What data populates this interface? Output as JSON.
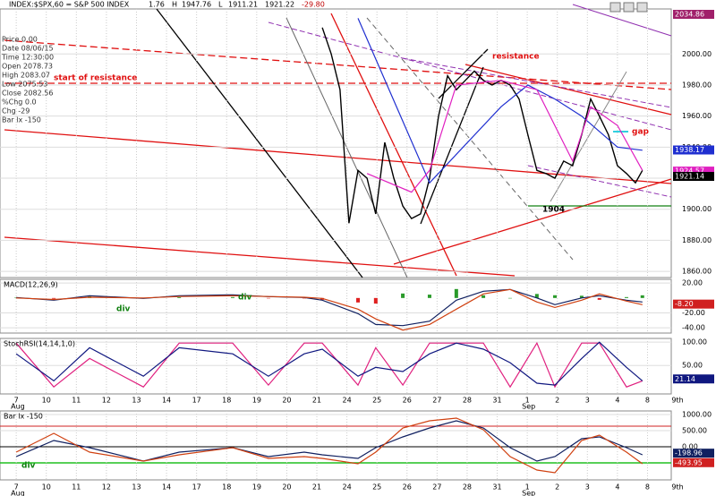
{
  "chart_data": [
    {
      "type": "line",
      "title": "INDEX:$SPX,60 = S&P 500 INDEX",
      "header_values": [
        "1.76",
        "H",
        "1947.76",
        "L",
        "1911.21",
        "1921.22",
        "-29.80"
      ],
      "info_panel": [
        "Price  0.00",
        "Date  08/06/15",
        "Time  12:30:00",
        "Open  2078.73",
        "High  2083.07",
        "Low  2075.53",
        "Close  2082.56",
        "%Chg  0.0",
        "Chg  -29",
        "Bar lx  -150"
      ],
      "annotations": [
        "start of resistance",
        "resistance",
        "gap",
        "1904"
      ],
      "xlim": [
        -0.54,
        21.79
      ],
      "xticks": [
        {
          "value": 0,
          "label": "7"
        },
        {
          "value": 1,
          "label": "10"
        },
        {
          "value": 2,
          "label": "11"
        },
        {
          "value": 3,
          "label": "12"
        },
        {
          "value": 4,
          "label": "13"
        },
        {
          "value": 5,
          "label": "14"
        },
        {
          "value": 6,
          "label": "17"
        },
        {
          "value": 7,
          "label": "18"
        },
        {
          "value": 8,
          "label": "19"
        },
        {
          "value": 9,
          "label": "20"
        },
        {
          "value": 10,
          "label": "21"
        },
        {
          "value": 11,
          "label": "24"
        },
        {
          "value": 12,
          "label": "25"
        },
        {
          "value": 13,
          "label": "26"
        },
        {
          "value": 14,
          "label": "27"
        },
        {
          "value": 15,
          "label": "28"
        },
        {
          "value": 16,
          "label": "31"
        },
        {
          "value": 17,
          "label": "1"
        },
        {
          "value": 18,
          "label": "2"
        },
        {
          "value": 19,
          "label": "3"
        },
        {
          "value": 20,
          "label": "4"
        },
        {
          "value": 21,
          "label": "8"
        },
        {
          "value": 22,
          "label": "9th"
        }
      ],
      "month_labels": [
        "Aug",
        "Sep"
      ],
      "ylim": [
        1856,
        2029
      ],
      "yticks": [
        {
          "value": 1860,
          "label": "1860.00"
        },
        {
          "value": 1880,
          "label": "1880.00"
        },
        {
          "value": 1900,
          "label": "1900.00"
        },
        {
          "value": 1920,
          "label": "1920.00"
        },
        {
          "value": 1940,
          "label": "1940.00"
        },
        {
          "value": 1960,
          "label": "1960.00"
        },
        {
          "value": 1980,
          "label": "1980.00"
        },
        {
          "value": 2000,
          "label": "2000.00"
        }
      ],
      "last_labels": [
        {
          "value": 2034.86,
          "label": "2034.86",
          "color": "#a0206a"
        },
        {
          "value": 1938.17,
          "label": "1938.17",
          "color": "#1f2fd0"
        },
        {
          "value": 1924.57,
          "label": "1924.57",
          "color": "#e020c0"
        },
        {
          "value": 1921.14,
          "label": "1921.14",
          "color": "#000000"
        }
      ],
      "series": [
        {
          "color": "#000000",
          "x": [
            10.18,
            10.48,
            10.77,
            11.07,
            11.37,
            11.67,
            11.96,
            12.26,
            12.56,
            12.86,
            13.15,
            13.45,
            13.75,
            14.05,
            14.35,
            14.64,
            14.94,
            15.24,
            15.54,
            15.83,
            16.13,
            16.43,
            16.73,
            17.02,
            17.32,
            17.62,
            17.92,
            18.21,
            18.51,
            18.81,
            19.11,
            19.4,
            19.7,
            20,
            20.3,
            20.6,
            20.83
          ],
          "values": [
            2017,
            2000,
            1977,
            1891,
            1925,
            1920,
            1897,
            1943,
            1920,
            1902,
            1894,
            1897,
            1920,
            1960,
            1986,
            1977,
            1983,
            1989,
            1983,
            1980,
            1983,
            1980,
            1971,
            1948,
            1925,
            1923,
            1920,
            1931,
            1928,
            1948,
            1971,
            1960,
            1948,
            1928,
            1923,
            1917,
            1925
          ]
        },
        {
          "color": "#1f2fd0",
          "x": [
            11.37,
            13.75,
            16.13,
            17.02,
            17.92,
            18.81,
            20,
            20.83
          ],
          "values": [
            2023,
            1917,
            1966,
            1980,
            1971,
            1960,
            1940,
            1938
          ]
        },
        {
          "color": "#e020c0",
          "x": [
            11.67,
            13.15,
            13.75,
            14.64,
            16.13,
            17.32,
            18.51,
            19.11,
            20,
            20.83
          ],
          "values": [
            1923,
            1911,
            1925,
            1980,
            1983,
            1977,
            1931,
            1966,
            1954,
            1925
          ]
        }
      ]
    },
    {
      "type": "line",
      "title": "MACD(12,26,9)",
      "annotations": [
        "div",
        "div"
      ],
      "ylim": [
        -47,
        25
      ],
      "yticks": [
        {
          "value": 20,
          "label": "20.00"
        },
        {
          "value": -20,
          "label": "-20.00"
        },
        {
          "value": -40,
          "label": "-40.00"
        }
      ],
      "last_labels": [
        {
          "value": -8.2,
          "label": "-8.20",
          "color": "#d02020"
        }
      ],
      "x": [
        0,
        1.25,
        2.44,
        4.23,
        5.42,
        7.2,
        8.39,
        9.58,
        10.18,
        11.37,
        11.96,
        12.86,
        13.75,
        14.64,
        15.54,
        16.43,
        17.32,
        17.92,
        18.81,
        19.4,
        20.3,
        20.83
      ],
      "series": [
        {
          "color": "#102060",
          "values": [
            0.6,
            -3,
            3,
            -0.6,
            3,
            4.2,
            1.8,
            0.6,
            -3,
            -21,
            -35.5,
            -37,
            -31,
            -3,
            9,
            11.4,
            0,
            -9,
            0,
            3,
            -3,
            -5.4
          ]
        },
        {
          "color": "#d04010",
          "values": [
            0,
            -2,
            1,
            0,
            2,
            3,
            2,
            1,
            -0.6,
            -15,
            -28,
            -43,
            -35.5,
            -15,
            5.4,
            11.4,
            -5.4,
            -12.7,
            -3,
            5.4,
            -4.2,
            -9
          ]
        }
      ],
      "histogram": [
        0.6,
        -1,
        2,
        -0.6,
        1,
        1.2,
        -0.2,
        -0.4,
        -2.4,
        -6,
        -7.5,
        6,
        4.5,
        12,
        3.6,
        0,
        5.4,
        3.7,
        3,
        -2.4,
        1.2,
        3.6
      ]
    },
    {
      "type": "line",
      "title": "StochRSI(14,14,1,0)",
      "ylim": [
        -11,
        108
      ],
      "yticks": [
        {
          "value": 100,
          "label": "100.00"
        },
        {
          "value": 50,
          "label": "50.00"
        }
      ],
      "last_labels": [
        {
          "value": 21.14,
          "label": "21.14",
          "color": "#101880"
        }
      ],
      "x": [
        0,
        1.25,
        2.44,
        4.23,
        5.42,
        7.2,
        8.39,
        9.58,
        10.18,
        11.37,
        11.96,
        12.86,
        13.75,
        14.64,
        15.54,
        16.43,
        17.32,
        17.92,
        18.81,
        19.4,
        20.3,
        20.83
      ],
      "series": [
        {
          "color": "#e0207f",
          "values": [
            98,
            4,
            65,
            4,
            98,
            98,
            8,
            98,
            98,
            8,
            88,
            8,
            98,
            98,
            98,
            4,
            98,
            4,
            98,
            98,
            4,
            17
          ]
        },
        {
          "color": "#101880",
          "values": [
            75,
            17,
            88,
            27,
            88,
            75,
            27,
            75,
            85,
            27,
            46,
            37,
            75,
            98,
            85,
            56,
            12,
            8,
            65,
            100,
            46,
            17
          ]
        }
      ]
    },
    {
      "type": "line",
      "title": "Bar lx -150",
      "annotations": [
        "div"
      ],
      "ylim": [
        -1028,
        1111
      ],
      "yticks": [
        {
          "value": 1000,
          "label": "1000.00"
        },
        {
          "value": 500,
          "label": "500.00"
        },
        {
          "value": 0,
          "label": "0.00"
        }
      ],
      "last_labels": [
        {
          "value": -198.96,
          "label": "-198.96",
          "color": "#102060"
        },
        {
          "value": -493.95,
          "label": "-493.95",
          "color": "#d02020"
        }
      ],
      "x": [
        0,
        1.25,
        2.44,
        4.23,
        5.42,
        7.2,
        8.39,
        9.58,
        10.18,
        11.37,
        11.96,
        12.86,
        13.75,
        14.64,
        15.54,
        16.43,
        17.32,
        17.92,
        18.81,
        19.4,
        20.3,
        20.83
      ],
      "series": [
        {
          "color": "#102060",
          "values": [
            -306,
            194,
            -28,
            -444,
            -167,
            -28,
            -306,
            -167,
            -250,
            -361,
            -28,
            306,
            583,
            806,
            583,
            -28,
            -444,
            -306,
            250,
            306,
            -28,
            -250
          ]
        },
        {
          "color": "#d04010",
          "values": [
            -167,
            417,
            -167,
            -444,
            -250,
            -28,
            -361,
            -306,
            -361,
            -528,
            -167,
            583,
            806,
            889,
            528,
            -306,
            -722,
            -806,
            194,
            361,
            -167,
            -528
          ]
        }
      ]
    }
  ]
}
